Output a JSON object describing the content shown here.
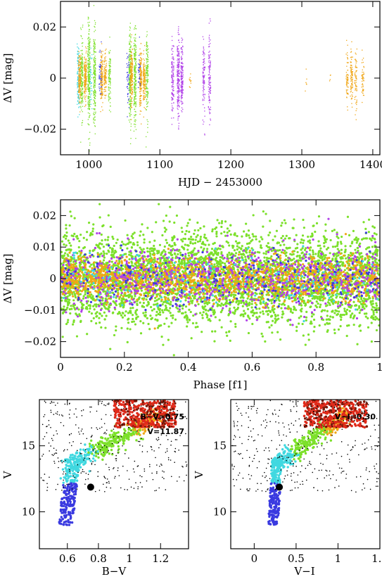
{
  "chart_data": [
    {
      "type": "scatter",
      "panel": "light-curve",
      "xlabel": "HJD − 2453000",
      "ylabel": "ΔV [mag]",
      "xlim": [
        960,
        1410
      ],
      "ylim": [
        0.03,
        -0.03
      ],
      "xticks": [
        1000,
        1100,
        1200,
        1300,
        1400
      ],
      "xtick_labels": [
        "1000",
        "1100",
        "1200",
        "1300",
        "1400"
      ],
      "yticks": [
        -0.02,
        0,
        0.02
      ],
      "ytick_labels": [
        "−0.02",
        "0",
        "0.02"
      ],
      "series": [
        {
          "color": "#40d8e0",
          "segments": [
            {
              "x": 985,
              "spread": 0.014,
              "count": 120
            },
            {
              "x": 1003,
              "spread": 0.012,
              "count": 40
            }
          ]
        },
        {
          "color": "#7ce02a",
          "segments": [
            {
              "x": 990,
              "spread": 0.016,
              "count": 160
            },
            {
              "x": 1000,
              "spread": 0.022,
              "count": 260
            },
            {
              "x": 1008,
              "spread": 0.02,
              "count": 200
            },
            {
              "x": 1029,
              "spread": 0.014,
              "count": 90
            },
            {
              "x": 1058,
              "spread": 0.02,
              "count": 220
            },
            {
              "x": 1065,
              "spread": 0.02,
              "count": 220
            },
            {
              "x": 1082,
              "spread": 0.018,
              "count": 140
            }
          ]
        },
        {
          "color": "#f0a616",
          "segments": [
            {
              "x": 987,
              "spread": 0.01,
              "count": 160
            },
            {
              "x": 995,
              "spread": 0.01,
              "count": 160
            },
            {
              "x": 1018,
              "spread": 0.012,
              "count": 140
            },
            {
              "x": 1023,
              "spread": 0.01,
              "count": 100
            },
            {
              "x": 1060,
              "spread": 0.012,
              "count": 160
            },
            {
              "x": 1073,
              "spread": 0.012,
              "count": 160
            },
            {
              "x": 1078,
              "spread": 0.01,
              "count": 120
            },
            {
              "x": 1143,
              "spread": 0.005,
              "count": 10
            },
            {
              "x": 1306,
              "spread": 0.006,
              "count": 6
            },
            {
              "x": 1340,
              "spread": 0.004,
              "count": 4
            },
            {
              "x": 1364,
              "spread": 0.012,
              "count": 60
            },
            {
              "x": 1370,
              "spread": 0.012,
              "count": 90
            },
            {
              "x": 1376,
              "spread": 0.012,
              "count": 60
            },
            {
              "x": 1386,
              "spread": 0.01,
              "count": 50
            }
          ]
        },
        {
          "color": "#3a3ae0",
          "segments": [
            {
              "x": 1016,
              "spread": 0.012,
              "count": 40
            },
            {
              "x": 1055,
              "spread": 0.012,
              "count": 40
            },
            {
              "x": 1071,
              "spread": 0.01,
              "count": 30
            }
          ]
        },
        {
          "color": "#b040e8",
          "segments": [
            {
              "x": 1118,
              "spread": 0.016,
              "count": 120
            },
            {
              "x": 1126,
              "spread": 0.018,
              "count": 200
            },
            {
              "x": 1131,
              "spread": 0.015,
              "count": 160
            },
            {
              "x": 1162,
              "spread": 0.016,
              "count": 90
            },
            {
              "x": 1170,
              "spread": 0.02,
              "count": 110
            }
          ]
        }
      ]
    },
    {
      "type": "scatter",
      "panel": "phase-diagram",
      "xlabel": "Phase [f1]",
      "ylabel": "ΔV [mag]",
      "xlim": [
        0,
        1
      ],
      "ylim": [
        0.025,
        -0.025
      ],
      "xticks": [
        0,
        0.2,
        0.4,
        0.6,
        0.8,
        1
      ],
      "xtick_labels": [
        "0",
        "0.2",
        "0.4",
        "0.6",
        "0.8",
        "1"
      ],
      "yticks": [
        -0.02,
        -0.01,
        0,
        0.01,
        0.02
      ],
      "ytick_labels": [
        "−0.02",
        "−0.01",
        "0",
        "0.01",
        "0.02"
      ],
      "series": [
        {
          "color": "#7ce02a",
          "count": 4200,
          "spread": 0.013
        },
        {
          "color": "#f0a616",
          "count": 1500,
          "spread": 0.006
        },
        {
          "color": "#b040e8",
          "count": 700,
          "spread": 0.009
        },
        {
          "color": "#3a3ae0",
          "count": 250,
          "spread": 0.008
        },
        {
          "color": "#40d8e0",
          "count": 150,
          "spread": 0.008
        }
      ]
    },
    {
      "type": "scatter",
      "panel": "cmd-bv",
      "xlabel": "B−V",
      "ylabel": "V",
      "xlim": [
        0.42,
        1.38
      ],
      "ylim": [
        18.5,
        7.2
      ],
      "xticks": [
        0.6,
        0.8,
        1,
        1.2
      ],
      "xtick_labels": [
        "0.6",
        "0.8",
        "1",
        "1.2"
      ],
      "yticks": [
        10,
        15
      ],
      "ytick_labels": [
        "10",
        "15"
      ],
      "annotations": [
        "B−V=0.75",
        "V=11.87"
      ],
      "target": {
        "x": 0.75,
        "y": 11.87
      },
      "sequence": {
        "turnoff": [
          0.62,
          12.0
        ],
        "top": [
          0.6,
          9.0
        ],
        "bottom": [
          1.02,
          16.3
        ],
        "end": [
          1.2,
          17.4
        ]
      }
    },
    {
      "type": "scatter",
      "panel": "cmd-vi",
      "xlabel": "V−I",
      "ylabel": "V",
      "xlim": [
        -0.28,
        1.5
      ],
      "ylim": [
        18.5,
        7.2
      ],
      "xticks": [
        0,
        0.5,
        1,
        1.5
      ],
      "xtick_labels": [
        "0",
        "0.5",
        "1",
        "1.5"
      ],
      "yticks": [
        10,
        15
      ],
      "ytick_labels": [
        "10",
        "15"
      ],
      "annotations": [
        "V−I=0.30"
      ],
      "target": {
        "x": 0.3,
        "y": 11.87
      },
      "sequence": {
        "turnoff": [
          0.25,
          12.0
        ],
        "top": [
          0.2,
          9.0
        ],
        "bottom": [
          0.82,
          16.3
        ],
        "end": [
          1.1,
          17.4
        ]
      }
    }
  ],
  "colors": {
    "cyan": "#40d8e0",
    "green": "#7ce02a",
    "orange": "#f0a616",
    "blue": "#3a3ae0",
    "purple": "#b040e8",
    "red": "#e02a1a",
    "dark-red": "#7a1a0a",
    "black": "#000000"
  }
}
